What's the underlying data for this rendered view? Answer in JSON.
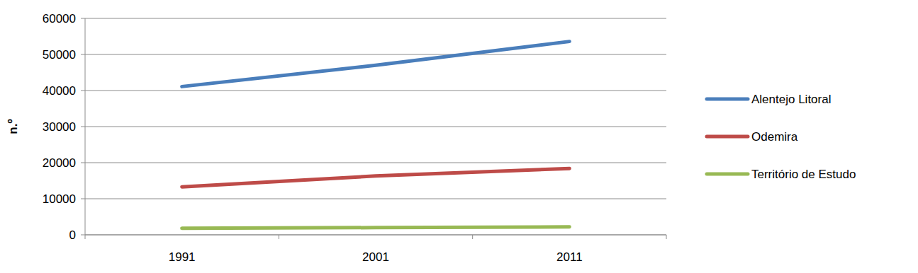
{
  "chart_data": {
    "type": "line",
    "y_label": "n.º",
    "categories": [
      "1991",
      "2001",
      "2011"
    ],
    "series": [
      {
        "name": "Alentejo Litoral",
        "color": "#4a7ebb",
        "values": [
          41100,
          47000,
          53600
        ]
      },
      {
        "name": "Odemira",
        "color": "#be4b48",
        "values": [
          13300,
          16300,
          18400
        ]
      },
      {
        "name": "Território de Estudo",
        "color": "#98b954",
        "values": [
          1800,
          2000,
          2200
        ]
      }
    ],
    "ylim": [
      0,
      60000
    ],
    "yticks": [
      0,
      10000,
      20000,
      30000,
      40000,
      50000,
      60000
    ],
    "grid": true,
    "legend": "right"
  }
}
